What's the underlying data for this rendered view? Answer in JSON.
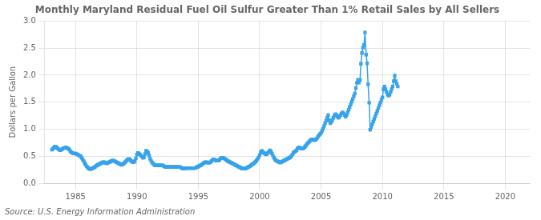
{
  "chart_data": {
    "type": "line",
    "title": "Monthly Maryland Residual Fuel Oil Sulfur Greater Than 1% Retail Sales by All Sellers",
    "ylabel": "Dollars per Gallon",
    "source": "Source: U.S. Energy Information Administration",
    "xlim": [
      1982.5,
      2022.0
    ],
    "ylim": [
      0.0,
      3.0
    ],
    "xticks": [
      1985,
      1990,
      1995,
      2000,
      2005,
      2010,
      2015,
      2020
    ],
    "yticks": [
      {
        "value": 0.0,
        "label": "0.0"
      },
      {
        "value": 0.5,
        "label": "0.5"
      },
      {
        "value": 1.0,
        "label": "1.0"
      },
      {
        "value": 1.5,
        "label": "1.5"
      },
      {
        "value": 2.0,
        "label": "2.0"
      },
      {
        "value": 2.5,
        "label": "2.5"
      },
      {
        "value": 3.0,
        "label": "3.0"
      }
    ],
    "grid": true,
    "marker": "square",
    "x": [
      1983.08,
      1983.17,
      1983.25,
      1983.33,
      1983.42,
      1983.5,
      1983.58,
      1983.67,
      1983.75,
      1983.83,
      1983.92,
      1984.0,
      1984.08,
      1984.17,
      1984.25,
      1984.33,
      1984.42,
      1984.5,
      1984.58,
      1984.67,
      1984.75,
      1984.83,
      1984.92,
      1985.0,
      1985.08,
      1985.17,
      1985.25,
      1985.33,
      1985.42,
      1985.5,
      1985.58,
      1985.67,
      1985.75,
      1985.83,
      1985.92,
      1986.0,
      1986.08,
      1986.17,
      1986.25,
      1986.33,
      1986.42,
      1986.5,
      1986.58,
      1986.67,
      1986.75,
      1986.83,
      1986.92,
      1987.0,
      1987.08,
      1987.17,
      1987.25,
      1987.33,
      1987.42,
      1987.5,
      1987.58,
      1987.67,
      1987.75,
      1987.83,
      1987.92,
      1988.0,
      1988.08,
      1988.17,
      1988.25,
      1988.33,
      1988.42,
      1988.5,
      1988.58,
      1988.67,
      1988.75,
      1988.83,
      1988.92,
      1989.0,
      1989.08,
      1989.17,
      1989.25,
      1989.33,
      1989.42,
      1989.5,
      1989.58,
      1989.67,
      1989.75,
      1989.83,
      1989.92,
      1990.0,
      1990.08,
      1990.17,
      1990.25,
      1990.33,
      1990.42,
      1990.5,
      1990.58,
      1990.67,
      1990.75,
      1990.83,
      1990.92,
      1991.0,
      1991.08,
      1991.17,
      1991.25,
      1991.33,
      1991.42,
      1991.5,
      1991.58,
      1991.67,
      1991.75,
      1991.83,
      1991.92,
      1992.0,
      1992.08,
      1992.17,
      1992.25,
      1992.33,
      1992.42,
      1992.5,
      1992.58,
      1992.67,
      1992.75,
      1992.83,
      1992.92,
      1993.0,
      1993.08,
      1993.17,
      1993.25,
      1993.33,
      1993.42,
      1993.5,
      1993.58,
      1993.67,
      1993.75,
      1993.83,
      1993.92,
      1994.0,
      1994.08,
      1994.17,
      1994.25,
      1994.33,
      1994.42,
      1994.5,
      1994.58,
      1994.67,
      1994.75,
      1994.83,
      1994.92,
      1995.0,
      1995.08,
      1995.17,
      1995.25,
      1995.33,
      1995.42,
      1995.5,
      1995.58,
      1995.67,
      1995.75,
      1995.83,
      1995.92,
      1996.0,
      1996.08,
      1996.17,
      1996.25,
      1996.33,
      1996.42,
      1996.5,
      1996.58,
      1996.67,
      1996.75,
      1996.83,
      1996.92,
      1997.0,
      1997.08,
      1997.17,
      1997.25,
      1997.33,
      1997.42,
      1997.5,
      1997.58,
      1997.67,
      1997.75,
      1997.83,
      1997.92,
      1998.0,
      1998.08,
      1998.17,
      1998.25,
      1998.33,
      1998.42,
      1998.5,
      1998.58,
      1998.67,
      1998.75,
      1998.83,
      1998.92,
      1999.0,
      1999.08,
      1999.17,
      1999.25,
      1999.33,
      1999.42,
      1999.5,
      1999.58,
      1999.67,
      1999.75,
      1999.83,
      1999.92,
      2000.0,
      2000.08,
      2000.17,
      2000.25,
      2000.33,
      2000.42,
      2000.5,
      2000.58,
      2000.67,
      2000.75,
      2000.83,
      2000.92,
      2001.0,
      2001.08,
      2001.17,
      2001.25,
      2001.33,
      2001.42,
      2001.5,
      2001.58,
      2001.67,
      2001.75,
      2001.83,
      2001.92,
      2002.0,
      2002.08,
      2002.17,
      2002.25,
      2002.33,
      2002.42,
      2002.5,
      2002.58,
      2002.67,
      2002.75,
      2002.83,
      2002.92,
      2003.0,
      2003.08,
      2003.17,
      2003.25,
      2003.33,
      2003.42,
      2003.5,
      2003.58,
      2003.67,
      2003.75,
      2003.83,
      2003.92,
      2004.0,
      2004.08,
      2004.17,
      2004.25,
      2004.33,
      2004.42,
      2004.5,
      2004.58,
      2004.67,
      2004.75,
      2004.83,
      2004.92,
      2005.0,
      2005.08,
      2005.17,
      2005.25,
      2005.33,
      2005.42,
      2005.5,
      2005.58,
      2005.67,
      2005.75,
      2005.83,
      2005.92,
      2006.0,
      2006.08,
      2006.17,
      2006.25,
      2006.33,
      2006.42,
      2006.5,
      2006.58,
      2006.67,
      2006.75,
      2006.83,
      2006.92,
      2007.0,
      2007.08,
      2007.17,
      2007.25,
      2007.33,
      2007.42,
      2007.5,
      2007.58,
      2007.67,
      2007.75,
      2007.83,
      2007.92,
      2008.0,
      2008.08,
      2008.17,
      2008.25,
      2008.33,
      2008.42,
      2008.5,
      2008.58,
      2008.67,
      2008.75,
      2008.83,
      2008.92,
      2009.0,
      2009.08,
      2009.17,
      2009.25,
      2009.33,
      2009.42,
      2009.5,
      2009.58,
      2009.67,
      2009.75,
      2009.83,
      2009.92,
      2010.0,
      2010.08,
      2010.17,
      2010.25,
      2010.33,
      2010.42,
      2010.5,
      2010.58,
      2010.67,
      2010.75,
      2010.83,
      2010.92,
      2011.0,
      2011.08,
      2011.17,
      2011.25
    ],
    "values": [
      0.62,
      0.64,
      0.66,
      0.68,
      0.67,
      0.65,
      0.64,
      0.62,
      0.61,
      0.62,
      0.63,
      0.65,
      0.65,
      0.66,
      0.66,
      0.65,
      0.64,
      0.62,
      0.59,
      0.57,
      0.56,
      0.55,
      0.55,
      0.55,
      0.54,
      0.53,
      0.52,
      0.51,
      0.5,
      0.47,
      0.44,
      0.41,
      0.37,
      0.34,
      0.31,
      0.29,
      0.27,
      0.26,
      0.26,
      0.27,
      0.28,
      0.29,
      0.3,
      0.32,
      0.33,
      0.34,
      0.35,
      0.36,
      0.37,
      0.38,
      0.39,
      0.39,
      0.38,
      0.37,
      0.37,
      0.38,
      0.39,
      0.4,
      0.41,
      0.42,
      0.42,
      0.41,
      0.4,
      0.39,
      0.38,
      0.37,
      0.36,
      0.35,
      0.34,
      0.35,
      0.36,
      0.38,
      0.4,
      0.42,
      0.44,
      0.45,
      0.44,
      0.42,
      0.4,
      0.39,
      0.39,
      0.41,
      0.46,
      0.53,
      0.56,
      0.55,
      0.53,
      0.51,
      0.49,
      0.47,
      0.48,
      0.54,
      0.6,
      0.59,
      0.56,
      0.51,
      0.45,
      0.41,
      0.38,
      0.36,
      0.34,
      0.33,
      0.33,
      0.33,
      0.33,
      0.33,
      0.33,
      0.33,
      0.33,
      0.32,
      0.31,
      0.3,
      0.3,
      0.3,
      0.3,
      0.3,
      0.3,
      0.3,
      0.3,
      0.3,
      0.3,
      0.3,
      0.3,
      0.3,
      0.3,
      0.3,
      0.29,
      0.28,
      0.27,
      0.27,
      0.27,
      0.28,
      0.28,
      0.28,
      0.28,
      0.28,
      0.28,
      0.28,
      0.28,
      0.28,
      0.28,
      0.29,
      0.3,
      0.31,
      0.32,
      0.33,
      0.34,
      0.35,
      0.37,
      0.38,
      0.39,
      0.39,
      0.38,
      0.38,
      0.38,
      0.39,
      0.41,
      0.43,
      0.44,
      0.43,
      0.42,
      0.42,
      0.42,
      0.42,
      0.44,
      0.46,
      0.47,
      0.47,
      0.46,
      0.45,
      0.44,
      0.42,
      0.41,
      0.4,
      0.39,
      0.38,
      0.37,
      0.36,
      0.35,
      0.34,
      0.33,
      0.32,
      0.31,
      0.3,
      0.29,
      0.28,
      0.27,
      0.27,
      0.27,
      0.27,
      0.28,
      0.29,
      0.3,
      0.31,
      0.32,
      0.34,
      0.35,
      0.36,
      0.38,
      0.4,
      0.42,
      0.45,
      0.48,
      0.52,
      0.57,
      0.6,
      0.58,
      0.56,
      0.55,
      0.53,
      0.54,
      0.56,
      0.58,
      0.61,
      0.59,
      0.55,
      0.51,
      0.47,
      0.44,
      0.42,
      0.41,
      0.4,
      0.39,
      0.38,
      0.39,
      0.4,
      0.41,
      0.42,
      0.43,
      0.44,
      0.45,
      0.46,
      0.47,
      0.48,
      0.5,
      0.53,
      0.56,
      0.58,
      0.59,
      0.61,
      0.64,
      0.66,
      0.66,
      0.65,
      0.64,
      0.64,
      0.65,
      0.67,
      0.69,
      0.72,
      0.74,
      0.76,
      0.78,
      0.8,
      0.81,
      0.81,
      0.8,
      0.8,
      0.81,
      0.83,
      0.86,
      0.89,
      0.91,
      0.93,
      0.97,
      1.01,
      1.06,
      1.11,
      1.16,
      1.21,
      1.26,
      1.16,
      1.11,
      1.13,
      1.17,
      1.21,
      1.25,
      1.28,
      1.26,
      1.23,
      1.21,
      1.23,
      1.26,
      1.29,
      1.31,
      1.29,
      1.26,
      1.23,
      1.26,
      1.31,
      1.36,
      1.41,
      1.46,
      1.51,
      1.56,
      1.61,
      1.66,
      1.76,
      1.86,
      1.91,
      1.86,
      1.91,
      2.21,
      2.41,
      2.51,
      2.56,
      2.79,
      2.38,
      2.22,
      1.83,
      1.49,
      0.99,
      1.04,
      1.09,
      1.14,
      1.19,
      1.24,
      1.29,
      1.34,
      1.39,
      1.44,
      1.49,
      1.54,
      1.59,
      1.74,
      1.79,
      1.74,
      1.69,
      1.64,
      1.62,
      1.64,
      1.69,
      1.74,
      1.79,
      1.89,
      1.99,
      1.89,
      1.84,
      1.79
    ]
  }
}
